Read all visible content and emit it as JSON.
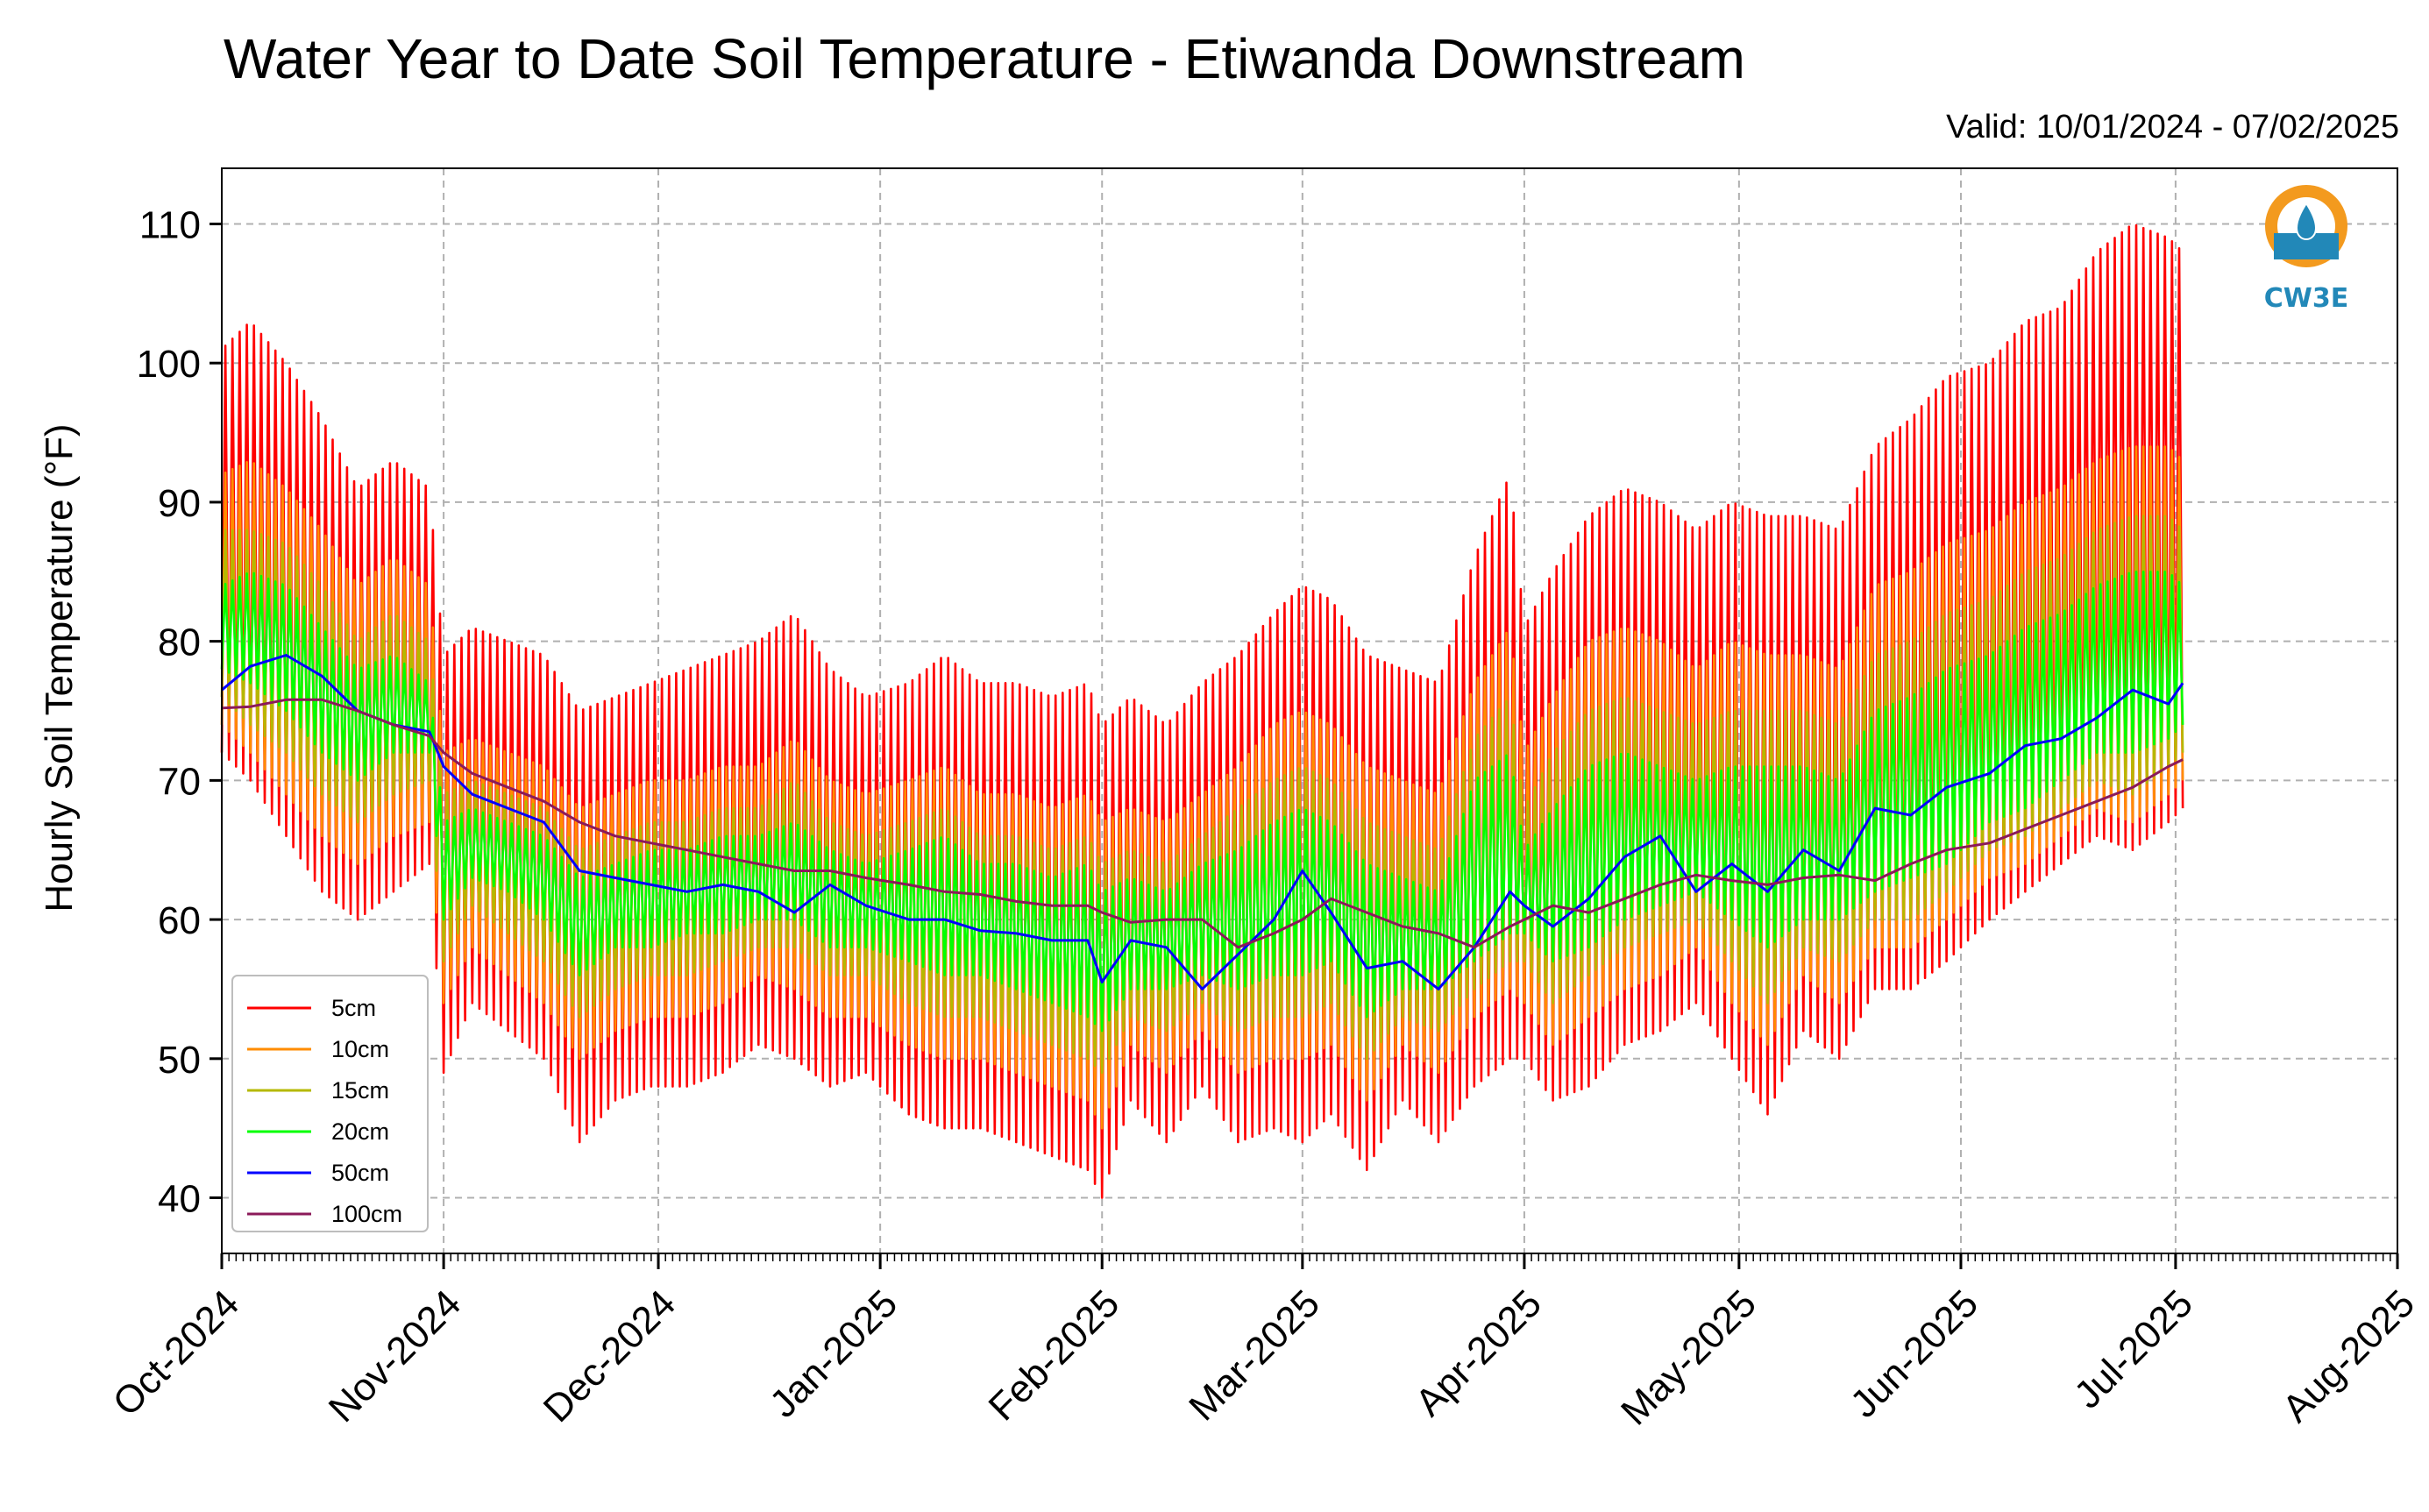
{
  "title": "Water Year to Date Soil Temperature - Etiwanda Downstream",
  "subtitle": "Valid: 10/01/2024 - 07/02/2025",
  "logo_text": "CW3E",
  "chart_data": {
    "type": "line",
    "title": "Water Year to Date Soil Temperature - Etiwanda Downstream",
    "subtitle": "Valid: 10/01/2024 - 07/02/2025",
    "xlabel": "",
    "ylabel": "Hourly Soil Temperature ($^\\circ$F)",
    "ylabel_text": "Hourly Soil Temperature (°F)",
    "x_range": [
      "2024-10-01",
      "2025-08-01"
    ],
    "ylim": [
      36,
      114
    ],
    "x_ticks": [
      "2024-10-01",
      "2024-11-01",
      "2024-12-01",
      "2025-01-01",
      "2025-02-01",
      "2025-03-01",
      "2025-04-01",
      "2025-05-01",
      "2025-06-01",
      "2025-07-01",
      "2025-08-01"
    ],
    "x_tick_labels": [
      "Oct-2024",
      "Nov-2024",
      "Dec-2024",
      "Jan-2025",
      "Feb-2025",
      "Mar-2025",
      "Apr-2025",
      "May-2025",
      "Jun-2025",
      "Jul-2025",
      "Aug-2025"
    ],
    "y_ticks": [
      40,
      50,
      60,
      70,
      80,
      90,
      100,
      110
    ],
    "grid": true,
    "legend_position": "lower-left",
    "dates": [
      "2024-10-01",
      "2024-10-05",
      "2024-10-10",
      "2024-10-15",
      "2024-10-20",
      "2024-10-25",
      "2024-10-30",
      "2024-11-01",
      "2024-11-05",
      "2024-11-10",
      "2024-11-15",
      "2024-11-20",
      "2024-11-25",
      "2024-11-30",
      "2024-12-05",
      "2024-12-10",
      "2024-12-15",
      "2024-12-20",
      "2024-12-25",
      "2024-12-30",
      "2025-01-05",
      "2025-01-10",
      "2025-01-15",
      "2025-01-20",
      "2025-01-25",
      "2025-01-30",
      "2025-02-01",
      "2025-02-05",
      "2025-02-10",
      "2025-02-15",
      "2025-02-20",
      "2025-02-25",
      "2025-03-01",
      "2025-03-05",
      "2025-03-10",
      "2025-03-15",
      "2025-03-20",
      "2025-03-25",
      "2025-03-30",
      "2025-04-01",
      "2025-04-05",
      "2025-04-10",
      "2025-04-15",
      "2025-04-20",
      "2025-04-25",
      "2025-04-30",
      "2025-05-05",
      "2025-05-10",
      "2025-05-15",
      "2025-05-20",
      "2025-05-25",
      "2025-05-30",
      "2025-06-05",
      "2025-06-10",
      "2025-06-15",
      "2025-06-20",
      "2025-06-25",
      "2025-06-30",
      "2025-07-02"
    ],
    "series": [
      {
        "name": "5cm",
        "color": "#ff0000",
        "type": "daily_range",
        "min": [
          72,
          70,
          66,
          62,
          60,
          62,
          64,
          49,
          54,
          52,
          50,
          44,
          47,
          48,
          48,
          49,
          51,
          50,
          48,
          49,
          46,
          45,
          45,
          44,
          43,
          42,
          40,
          47,
          44,
          48,
          44,
          45,
          44,
          46,
          42,
          47,
          44,
          48,
          50,
          50,
          47,
          48,
          51,
          52,
          54,
          50,
          46,
          52,
          50,
          55,
          55,
          57,
          60,
          62,
          64,
          66,
          65,
          67,
          68
        ],
        "max": [
          101,
          103,
          100,
          96,
          91,
          93,
          91,
          79,
          81,
          80,
          79,
          75,
          76,
          77,
          78,
          79,
          80,
          82,
          78,
          76,
          77,
          79,
          77,
          77,
          76,
          77,
          74,
          76,
          74,
          77,
          79,
          82,
          84,
          83,
          79,
          78,
          77,
          86,
          92,
          81,
          85,
          89,
          91,
          90,
          88,
          90,
          89,
          89,
          88,
          94,
          96,
          99,
          100,
          103,
          104,
          108,
          110,
          109,
          108
        ]
      },
      {
        "name": "10cm",
        "color": "#ff8c00",
        "type": "daily_range",
        "min": [
          74,
          72,
          69,
          66,
          64,
          66,
          67,
          54,
          58,
          56,
          54,
          50,
          52,
          53,
          53,
          54,
          56,
          55,
          53,
          53,
          51,
          50,
          50,
          49,
          48,
          47,
          45,
          51,
          49,
          52,
          49,
          50,
          50,
          51,
          47,
          51,
          49,
          53,
          55,
          54,
          51,
          53,
          55,
          56,
          58,
          54,
          51,
          56,
          54,
          58,
          58,
          60,
          63,
          64,
          66,
          68,
          67,
          69,
          70
        ],
        "max": [
          92,
          93,
          91,
          88,
          84,
          86,
          84,
          72,
          73,
          72,
          71,
          68,
          69,
          70,
          70,
          71,
          71,
          73,
          70,
          69,
          70,
          71,
          69,
          69,
          68,
          69,
          67,
          68,
          67,
          69,
          71,
          74,
          75,
          74,
          71,
          70,
          69,
          77,
          81,
          72,
          76,
          80,
          81,
          80,
          78,
          80,
          79,
          79,
          78,
          84,
          85,
          87,
          88,
          90,
          91,
          93,
          94,
          94,
          93
        ]
      },
      {
        "name": "15cm",
        "color": "#b5b800",
        "type": "daily_range",
        "min": [
          76,
          74,
          72,
          69,
          67,
          69,
          70,
          57,
          61,
          59,
          57,
          53,
          55,
          56,
          56,
          57,
          58,
          58,
          56,
          56,
          54,
          53,
          53,
          52,
          51,
          50,
          49,
          53,
          52,
          54,
          52,
          53,
          53,
          54,
          50,
          53,
          52,
          55,
          57,
          57,
          54,
          56,
          58,
          59,
          60,
          57,
          54,
          58,
          57,
          60,
          60,
          62,
          65,
          66,
          68,
          70,
          69,
          71,
          72
        ],
        "max": [
          88,
          88,
          87,
          84,
          80,
          82,
          80,
          69,
          70,
          69,
          68,
          65,
          66,
          67,
          67,
          68,
          68,
          70,
          67,
          66,
          67,
          68,
          66,
          66,
          65,
          66,
          64,
          65,
          64,
          66,
          68,
          70,
          71,
          70,
          67,
          66,
          65,
          73,
          76,
          68,
          72,
          75,
          76,
          75,
          74,
          75,
          75,
          75,
          74,
          79,
          80,
          82,
          83,
          85,
          86,
          88,
          89,
          89,
          88
        ]
      },
      {
        "name": "20cm",
        "color": "#00ff00",
        "type": "daily_range",
        "min": [
          78,
          77,
          75,
          72,
          70,
          72,
          72,
          60,
          63,
          62,
          60,
          56,
          58,
          58,
          59,
          59,
          60,
          60,
          58,
          58,
          57,
          56,
          56,
          55,
          54,
          53,
          52,
          55,
          55,
          56,
          55,
          56,
          56,
          57,
          53,
          55,
          55,
          57,
          59,
          59,
          57,
          58,
          60,
          61,
          62,
          60,
          58,
          60,
          60,
          62,
          63,
          64,
          67,
          68,
          70,
          72,
          72,
          73,
          74
        ],
        "max": [
          84,
          85,
          84,
          81,
          78,
          79,
          77,
          67,
          68,
          67,
          66,
          63,
          64,
          65,
          65,
          66,
          66,
          67,
          65,
          64,
          65,
          66,
          64,
          64,
          63,
          64,
          62,
          63,
          62,
          64,
          65,
          67,
          68,
          67,
          64,
          63,
          62,
          70,
          72,
          65,
          68,
          71,
          72,
          71,
          70,
          71,
          71,
          71,
          70,
          75,
          76,
          78,
          79,
          81,
          82,
          84,
          85,
          85,
          84
        ]
      },
      {
        "name": "50cm",
        "color": "#0000ff",
        "type": "line",
        "values": [
          76.5,
          78.2,
          79.0,
          77.5,
          75.0,
          74.0,
          73.5,
          71.0,
          69.0,
          68.0,
          67.0,
          63.5,
          63.0,
          62.5,
          62.0,
          62.5,
          62.0,
          60.5,
          62.5,
          61.0,
          60.0,
          60.0,
          59.2,
          59.0,
          58.5,
          58.5,
          55.5,
          58.5,
          58.0,
          55.0,
          57.5,
          60.0,
          63.5,
          60.5,
          56.5,
          57.0,
          55.0,
          58.0,
          62.0,
          61.0,
          59.5,
          61.5,
          64.5,
          66.0,
          62.0,
          64.0,
          62.0,
          65.0,
          63.5,
          68.0,
          67.5,
          69.5,
          70.5,
          72.5,
          73.0,
          74.5,
          76.5,
          75.5,
          77.0
        ]
      },
      {
        "name": "100cm",
        "color": "#8b1a5a",
        "type": "line",
        "values": [
          75.2,
          75.3,
          75.8,
          75.8,
          75.0,
          74.0,
          73.2,
          72.0,
          70.5,
          69.5,
          68.5,
          67.0,
          66.0,
          65.5,
          65.0,
          64.5,
          64.0,
          63.5,
          63.5,
          63.0,
          62.5,
          62.0,
          61.8,
          61.3,
          61.0,
          61.0,
          60.5,
          59.8,
          60.0,
          60.0,
          58.0,
          59.0,
          60.0,
          61.5,
          60.5,
          59.5,
          59.0,
          58.0,
          59.5,
          60.0,
          61.0,
          60.5,
          61.5,
          62.5,
          63.2,
          62.8,
          62.5,
          63.0,
          63.2,
          62.8,
          64.0,
          65.0,
          65.5,
          66.5,
          67.5,
          68.5,
          69.5,
          71.0,
          71.5
        ]
      }
    ],
    "legend": [
      "5cm",
      "10cm",
      "15cm",
      "20cm",
      "50cm",
      "100cm"
    ]
  }
}
